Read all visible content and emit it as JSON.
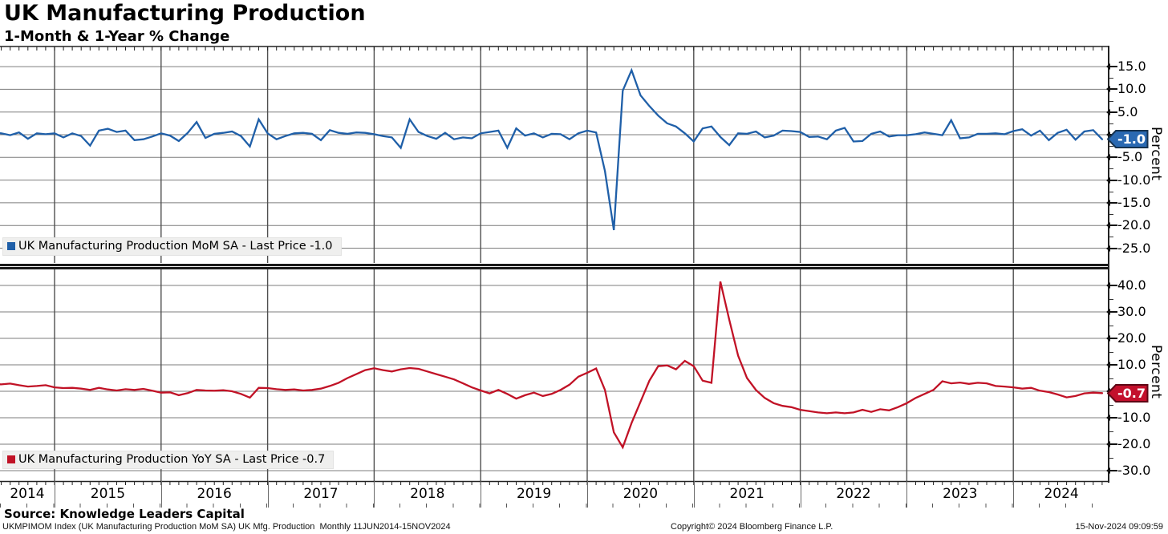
{
  "header": {
    "title": "UK Manufacturing Production",
    "subtitle": "1-Month & 1-Year % Change"
  },
  "x_axis": {
    "years": [
      "2014",
      "2015",
      "2016",
      "2017",
      "2018",
      "2019",
      "2020",
      "2021",
      "2022",
      "2023",
      "2024"
    ]
  },
  "chart_data": [
    {
      "type": "line",
      "name": "UK Manufacturing Production MoM SA",
      "legend": "UK Manufacturing Production MoM SA - Last Price -1.0",
      "ylabel": "Percent",
      "color": "#1f5fa8",
      "badge_color": "#2a69b2",
      "badge_border": "#16324f",
      "last_price": -1.0,
      "last_price_label": "-1.0",
      "ytick_labels": [
        "15.0",
        "10.0",
        "5.0",
        "-5.0",
        "-10.0",
        "-15.0",
        "-20.0",
        "-25.0"
      ],
      "grid_values": [
        15,
        10,
        5,
        0,
        -5,
        -10,
        -15,
        -20,
        -25
      ],
      "ylim": [
        -28.3,
        19.6
      ],
      "x_start": "2014-06",
      "x_end": "2024-11",
      "freq": "monthly",
      "values": [
        0.4,
        0.3,
        -0.1,
        0.5,
        -0.9,
        0.3,
        0.1,
        0.3,
        -0.6,
        0.3,
        -0.3,
        -2.4,
        0.9,
        1.3,
        0.6,
        0.9,
        -1.2,
        -1.0,
        -0.4,
        0.3,
        -0.2,
        -1.4,
        0.4,
        2.8,
        -0.7,
        0.2,
        0.4,
        0.7,
        -0.3,
        -2.6,
        3.4,
        0.3,
        -1.0,
        -0.3,
        0.3,
        0.4,
        0.2,
        -1.2,
        1.0,
        0.4,
        0.2,
        0.5,
        0.4,
        0.1,
        -0.3,
        -0.6,
        -2.9,
        3.4,
        0.6,
        -0.3,
        -0.9,
        0.4,
        -1.0,
        -0.6,
        -0.8,
        0.3,
        0.6,
        0.9,
        -2.9,
        1.4,
        -0.2,
        0.3,
        -0.6,
        0.2,
        0.1,
        -1.0,
        0.3,
        0.9,
        0.5,
        -8.0,
        -21.0,
        9.7,
        14.2,
        8.7,
        6.3,
        4.2,
        2.5,
        1.8,
        0.3,
        -1.5,
        1.4,
        1.8,
        -0.5,
        -2.3,
        0.3,
        0.2,
        0.7,
        -0.6,
        -0.2,
        0.9,
        0.8,
        0.6,
        -0.5,
        -0.4,
        -1.0,
        0.9,
        1.5,
        -1.5,
        -1.4,
        0.2,
        0.7,
        -0.4,
        -0.1,
        -0.1,
        0.1,
        0.5,
        0.2,
        -0.1,
        3.2,
        -0.8,
        -0.6,
        0.2,
        0.2,
        0.3,
        0.1,
        0.8,
        1.2,
        -0.2,
        0.9,
        -1.2,
        0.4,
        1.1,
        -1.1,
        0.7,
        1.0,
        -1.0
      ]
    },
    {
      "type": "line",
      "name": "UK Manufacturing Production YoY SA",
      "legend": "UK Manufacturing Production YoY SA - Last Price -0.7",
      "ylabel": "Percent",
      "color": "#c11226",
      "badge_color": "#c3102c",
      "badge_border": "#5e0715",
      "last_price": -0.7,
      "last_price_label": "-0.7",
      "ytick_labels": [
        "40.0",
        "30.0",
        "20.0",
        "10.0",
        "-10.0",
        "-20.0",
        "-30.0"
      ],
      "grid_values": [
        40,
        30,
        20,
        10,
        0,
        -10,
        -20,
        -30
      ],
      "ylim": [
        -35.5,
        46.1
      ],
      "x_start": "2014-06",
      "x_end": "2024-11",
      "freq": "monthly",
      "values": [
        2.8,
        2.6,
        2.9,
        2.3,
        1.8,
        2.0,
        2.3,
        1.5,
        1.2,
        1.3,
        1.0,
        0.5,
        1.3,
        0.7,
        0.3,
        0.8,
        0.5,
        0.9,
        0.2,
        -0.5,
        -0.4,
        -1.5,
        -0.7,
        0.5,
        0.3,
        0.2,
        0.4,
        0.0,
        -1.0,
        -2.4,
        1.3,
        1.2,
        0.8,
        0.5,
        0.7,
        0.3,
        0.5,
        1.0,
        2.0,
        3.2,
        5.0,
        6.5,
        8.0,
        8.7,
        8.0,
        7.5,
        8.3,
        8.8,
        8.5,
        7.5,
        6.5,
        5.5,
        4.5,
        3.0,
        1.5,
        0.3,
        -0.8,
        0.5,
        -1.0,
        -2.8,
        -1.5,
        -0.5,
        -1.8,
        -1.0,
        0.5,
        2.5,
        5.5,
        7.0,
        8.6,
        0.5,
        -15.5,
        -21.2,
        -12.0,
        -4.0,
        4.0,
        9.5,
        9.8,
        8.3,
        11.5,
        9.5,
        4.0,
        3.2,
        41.5,
        27.0,
        13.5,
        5.0,
        0.5,
        -2.5,
        -4.5,
        -5.5,
        -6.0,
        -7.0,
        -7.5,
        -8.0,
        -8.3,
        -8.0,
        -8.3,
        -8.0,
        -7.0,
        -7.8,
        -6.8,
        -7.2,
        -6.0,
        -4.5,
        -2.5,
        -1.0,
        0.5,
        3.8,
        3.0,
        3.3,
        2.8,
        3.2,
        3.0,
        2.0,
        1.8,
        1.5,
        1.0,
        1.3,
        0.2,
        -0.3,
        -1.2,
        -2.3,
        -1.8,
        -0.8,
        -0.5,
        -0.7
      ]
    }
  ],
  "footer": {
    "source": "Source: Knowledge Leaders Capital",
    "ticker_info": "UKMPIMOM Index (UK Manufacturing Production MoM SA) UK Mfg. Production  Monthly 11JUN2014-15NOV2024",
    "copyright": "Copyright© 2024 Bloomberg Finance L.P.",
    "timestamp": "15-Nov-2024 09:09:59"
  }
}
